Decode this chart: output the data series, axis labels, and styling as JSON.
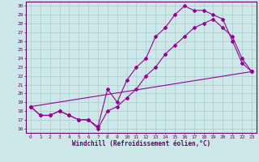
{
  "xlabel": "Windchill (Refroidissement éolien,°C)",
  "bg_color": "#cce8e8",
  "grid_color": "#aacccc",
  "line_color": "#990099",
  "spine_color": "#660066",
  "xlim": [
    -0.5,
    23.5
  ],
  "ylim": [
    15.5,
    30.5
  ],
  "xticks": [
    0,
    1,
    2,
    3,
    4,
    5,
    6,
    7,
    8,
    9,
    10,
    11,
    12,
    13,
    14,
    15,
    16,
    17,
    18,
    19,
    20,
    21,
    22,
    23
  ],
  "yticks": [
    16,
    17,
    18,
    19,
    20,
    21,
    22,
    23,
    24,
    25,
    26,
    27,
    28,
    29,
    30
  ],
  "line1_x": [
    0,
    1,
    2,
    3,
    4,
    5,
    6,
    7,
    8,
    9,
    10,
    11,
    12,
    13,
    14,
    15,
    16,
    17,
    18,
    19,
    20,
    21,
    22,
    23
  ],
  "line1_y": [
    18.5,
    17.5,
    17.5,
    18.0,
    17.5,
    17.0,
    17.0,
    16.0,
    18.0,
    18.5,
    19.5,
    20.5,
    22.0,
    23.0,
    24.5,
    25.5,
    26.5,
    27.5,
    28.0,
    28.5,
    27.5,
    26.5,
    24.0,
    22.5
  ],
  "line2_x": [
    0,
    1,
    2,
    3,
    4,
    5,
    6,
    7,
    8,
    9,
    10,
    11,
    12,
    13,
    14,
    15,
    16,
    17,
    18,
    19,
    20,
    21,
    22,
    23
  ],
  "line2_y": [
    18.5,
    17.5,
    17.5,
    18.0,
    17.5,
    17.0,
    17.0,
    16.2,
    20.5,
    19.0,
    21.5,
    23.0,
    24.0,
    26.5,
    27.5,
    29.0,
    30.0,
    29.5,
    29.5,
    29.0,
    28.5,
    26.0,
    23.5,
    22.5
  ],
  "line3_x": [
    0,
    23
  ],
  "line3_y": [
    18.5,
    22.5
  ],
  "tick_fontsize": 4.5,
  "xlabel_fontsize": 5.5
}
